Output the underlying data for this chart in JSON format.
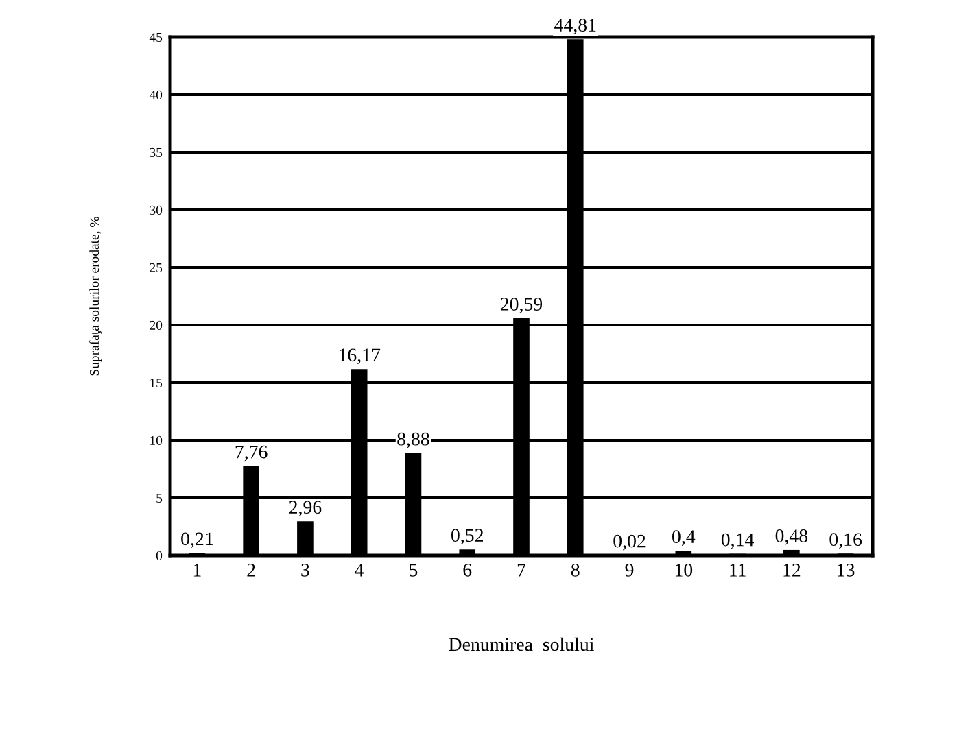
{
  "chart_data": {
    "type": "bar",
    "xlabel": "Denumirea  solului",
    "ylabel": "Suprafaţa solurilor erodate, %",
    "categories": [
      "1",
      "2",
      "3",
      "4",
      "5",
      "6",
      "7",
      "8",
      "9",
      "10",
      "11",
      "12",
      "13"
    ],
    "values": [
      0.21,
      7.76,
      2.96,
      16.17,
      8.88,
      0.52,
      20.59,
      44.81,
      0.02,
      0.4,
      0.14,
      0.48,
      0.16
    ],
    "value_labels": [
      "0,21",
      "7,76",
      "2,96",
      "16,17",
      "8,88",
      "0,52",
      "20,59",
      "44,81",
      "0,02",
      "0,4",
      "0,14",
      "0,48",
      "0,16"
    ],
    "color": "#000000",
    "ylim": [
      0,
      45
    ],
    "yticks": [
      0,
      5,
      10,
      15,
      20,
      25,
      30,
      35,
      40,
      45
    ],
    "grid": "y"
  }
}
